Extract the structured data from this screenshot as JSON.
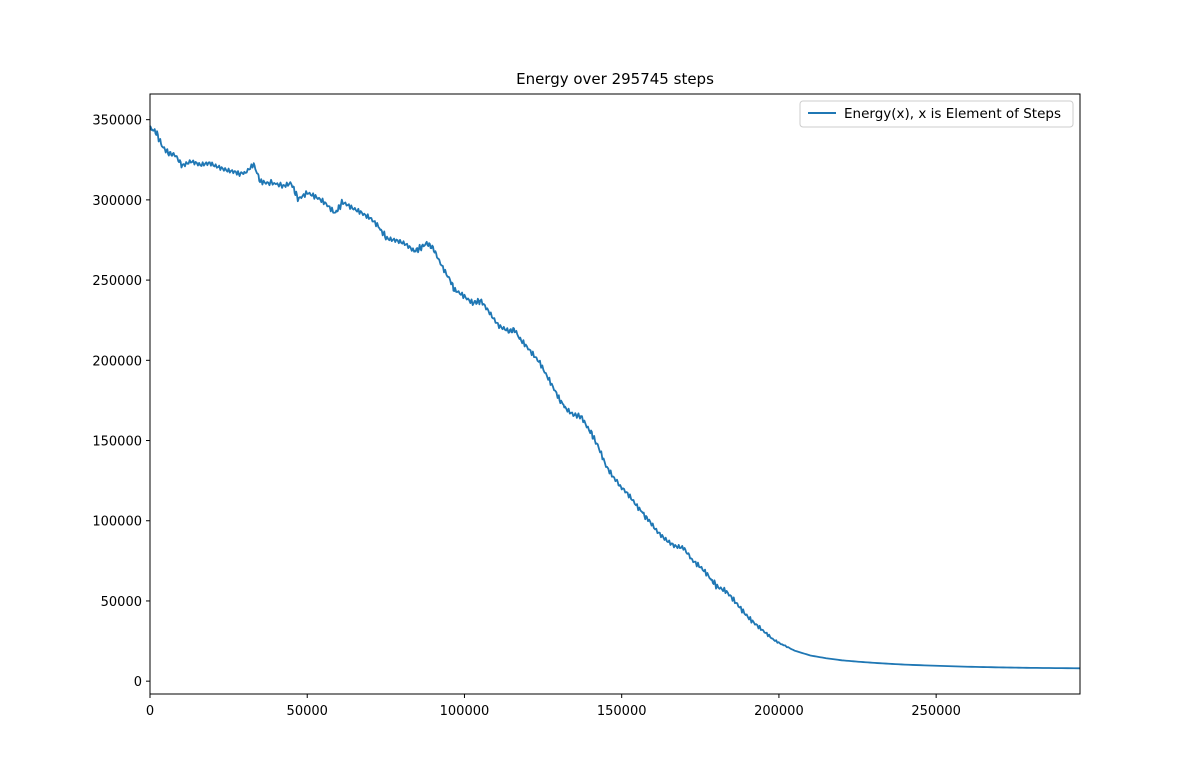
{
  "chart_data": {
    "type": "line",
    "title": "Energy over  295745 steps",
    "xlabel": "",
    "ylabel": "",
    "xlim": [
      0,
      295745
    ],
    "ylim": [
      -8000,
      366000
    ],
    "x_ticks": [
      0,
      50000,
      100000,
      150000,
      200000,
      250000
    ],
    "x_tick_labels": [
      "0",
      "50000",
      "100000",
      "150000",
      "200000",
      "250000"
    ],
    "y_ticks": [
      0,
      50000,
      100000,
      150000,
      200000,
      250000,
      300000,
      350000
    ],
    "y_tick_labels": [
      "0",
      "50000",
      "100000",
      "150000",
      "200000",
      "250000",
      "300000",
      "350000"
    ],
    "grid": false,
    "legend_position": "top-right",
    "series": [
      {
        "name": "Energy(x), x is Element of Steps",
        "color": "#1f77b4",
        "x": [
          0,
          2000,
          4000,
          6000,
          8000,
          10000,
          13000,
          16000,
          19000,
          22000,
          25000,
          28000,
          30000,
          33000,
          35000,
          38000,
          42000,
          45000,
          47000,
          50000,
          53000,
          56000,
          59000,
          61000,
          64000,
          67000,
          70000,
          73000,
          75000,
          78000,
          81000,
          84000,
          86000,
          88000,
          90000,
          92000,
          95000,
          97000,
          100000,
          103000,
          105000,
          108000,
          111000,
          114000,
          116000,
          118000,
          121000,
          124000,
          127000,
          130000,
          132000,
          135000,
          137000,
          140000,
          142000,
          145000,
          148000,
          150000,
          153000,
          156000,
          158000,
          161000,
          164000,
          167000,
          170000,
          172000,
          175000,
          178000,
          180000,
          183000,
          186000,
          189000,
          192000,
          195000,
          198000,
          201000,
          205000,
          210000,
          215000,
          220000,
          226000,
          232000,
          240000,
          250000,
          260000,
          270000,
          280000,
          295745
        ],
        "y": [
          345000,
          342000,
          333000,
          329000,
          328000,
          322000,
          324000,
          321000,
          323000,
          321000,
          318000,
          316000,
          317000,
          322000,
          312000,
          311000,
          309000,
          310000,
          301000,
          305000,
          301000,
          297000,
          292000,
          298000,
          295000,
          293000,
          289000,
          282000,
          277000,
          275000,
          272000,
          268000,
          270000,
          273000,
          270000,
          262000,
          252000,
          243000,
          240000,
          236000,
          237000,
          230000,
          222000,
          218000,
          219000,
          212000,
          205000,
          199000,
          188000,
          176000,
          171000,
          166000,
          165000,
          156000,
          148000,
          134000,
          126000,
          120000,
          114000,
          107000,
          101000,
          94000,
          89000,
          84000,
          82000,
          77000,
          71000,
          64000,
          60000,
          56000,
          49000,
          43000,
          37000,
          31000,
          26000,
          23000,
          19000,
          16000,
          14300,
          13000,
          12000,
          11200,
          10300,
          9600,
          9000,
          8600,
          8300,
          8000
        ]
      }
    ]
  }
}
